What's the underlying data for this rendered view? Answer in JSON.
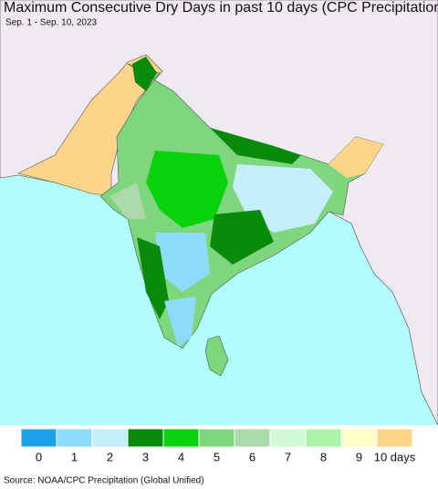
{
  "header": {
    "title": "Maximum Consecutive Dry Days in past 10 days (CPC Precipitation)",
    "subtitle": "Sep. 1 - Sep. 10, 2023"
  },
  "legend": {
    "items": [
      {
        "label": "0",
        "color": "#1ca3e8"
      },
      {
        "label": "1",
        "color": "#8ddcf7"
      },
      {
        "label": "2",
        "color": "#c5eefb"
      },
      {
        "label": "3",
        "color": "#0a8a0a"
      },
      {
        "label": "4",
        "color": "#0ad20a"
      },
      {
        "label": "5",
        "color": "#7ed67e"
      },
      {
        "label": "6",
        "color": "#acd9ac"
      },
      {
        "label": "7",
        "color": "#d2fad2"
      },
      {
        "label": "8",
        "color": "#aaf5aa"
      },
      {
        "label": "9",
        "color": "#ffffc8"
      },
      {
        "label": "10 days",
        "color": "#fcd48a"
      }
    ]
  },
  "source": "Source: NOAA/CPC Precipitation (Global Unified)"
}
